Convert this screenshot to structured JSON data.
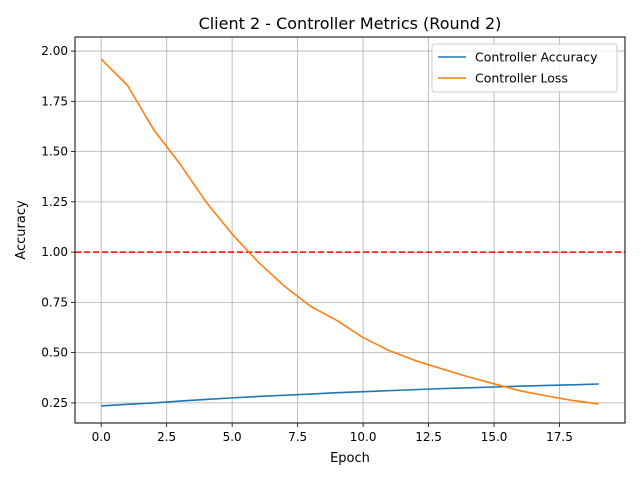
{
  "chart_data": {
    "type": "line",
    "title": "Client 2 - Controller Metrics (Round 2)",
    "xlabel": "Epoch",
    "ylabel": "Accuracy",
    "xlim": [
      -1,
      20
    ],
    "ylim": [
      0.15,
      2.07
    ],
    "x_ticks": [
      0.0,
      2.5,
      5.0,
      7.5,
      10.0,
      12.5,
      15.0,
      17.5
    ],
    "x_tick_labels": [
      "0.0",
      "2.5",
      "5.0",
      "7.5",
      "10.0",
      "12.5",
      "15.0",
      "17.5"
    ],
    "y_ticks": [
      0.25,
      0.5,
      0.75,
      1.0,
      1.25,
      1.5,
      1.75,
      2.0
    ],
    "y_tick_labels": [
      "0.25",
      "0.50",
      "0.75",
      "1.00",
      "1.25",
      "1.50",
      "1.75",
      "2.00"
    ],
    "grid": true,
    "legend_position": "top-right",
    "x": [
      0,
      1,
      2,
      3,
      4,
      5,
      6,
      7,
      8,
      9,
      10,
      11,
      12,
      13,
      14,
      15,
      16,
      17,
      18,
      19
    ],
    "series": [
      {
        "name": "Controller Accuracy",
        "color": "#1f77b4",
        "values": [
          0.235,
          0.243,
          0.25,
          0.259,
          0.267,
          0.275,
          0.282,
          0.288,
          0.294,
          0.301,
          0.306,
          0.311,
          0.316,
          0.321,
          0.325,
          0.329,
          0.333,
          0.337,
          0.34,
          0.344
        ]
      },
      {
        "name": "Controller Loss",
        "color": "#ff7f0e",
        "values": [
          1.96,
          1.83,
          1.61,
          1.44,
          1.25,
          1.09,
          0.95,
          0.83,
          0.73,
          0.66,
          0.575,
          0.51,
          0.46,
          0.42,
          0.38,
          0.345,
          0.31,
          0.285,
          0.262,
          0.245
        ]
      }
    ],
    "reference_line": {
      "y": 1.0,
      "color": "#ff0000",
      "style": "dashed"
    }
  }
}
